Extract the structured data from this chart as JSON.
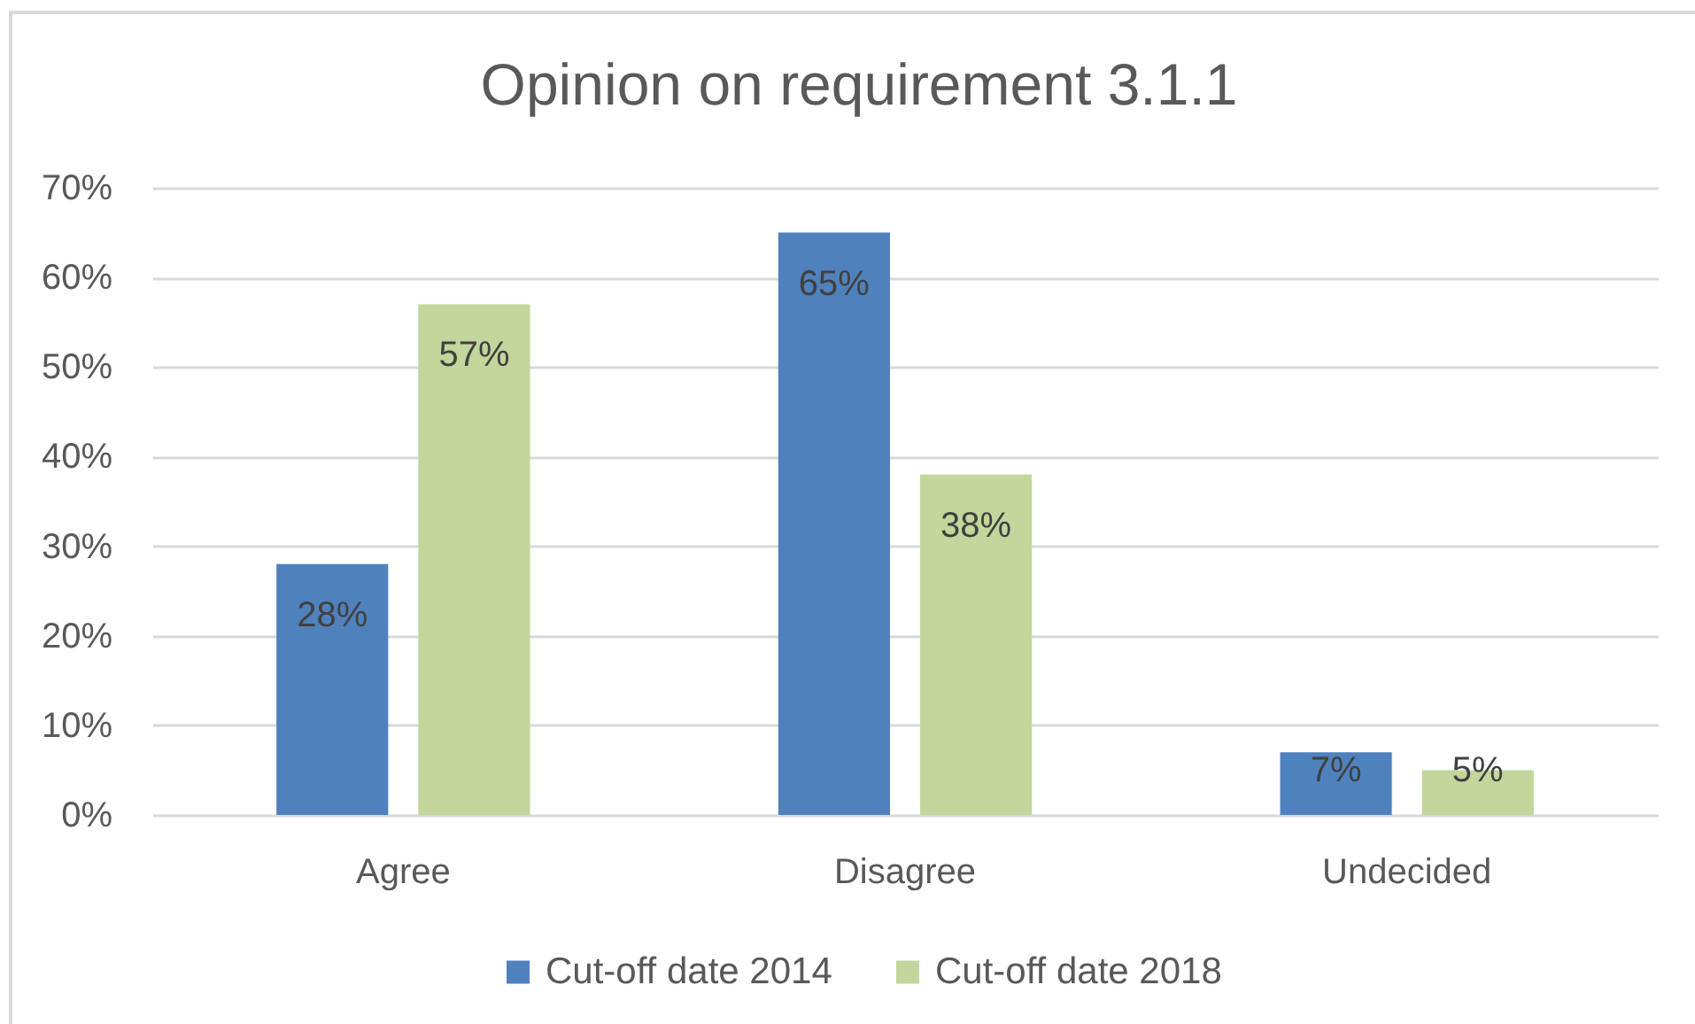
{
  "chart_data": {
    "type": "bar",
    "title": "Opinion on requirement 3.1.1",
    "categories": [
      "Agree",
      "Disagree",
      "Undecided"
    ],
    "series": [
      {
        "name": "Cut-off date 2014",
        "color": "#4f81bd",
        "values": [
          28,
          65,
          7
        ],
        "value_labels": [
          "28%",
          "65%",
          "7%"
        ]
      },
      {
        "name": "Cut-off date 2018",
        "color": "#c3d69b",
        "values": [
          57,
          38,
          5
        ],
        "value_labels": [
          "57%",
          "38%",
          "5%"
        ]
      }
    ],
    "ylim": [
      0,
      70
    ],
    "yticks": [
      {
        "value": 0,
        "label": "0%"
      },
      {
        "value": 10,
        "label": "10%"
      },
      {
        "value": 20,
        "label": "20%"
      },
      {
        "value": 30,
        "label": "30%"
      },
      {
        "value": 40,
        "label": "40%"
      },
      {
        "value": 50,
        "label": "50%"
      },
      {
        "value": 60,
        "label": "60%"
      },
      {
        "value": 70,
        "label": "70%"
      }
    ],
    "grid": "y",
    "legend": "bottom"
  }
}
